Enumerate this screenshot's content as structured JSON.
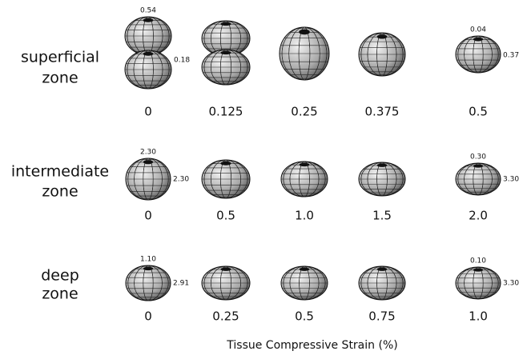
{
  "rows": [
    {
      "label_lines": [
        "superficial",
        "zone"
      ],
      "strains": [
        "0",
        "0.125",
        "0.25",
        "0.375",
        "0.5"
      ],
      "first_top": "0.54",
      "first_side": "0.18",
      "last_top": "0.04",
      "last_side": "0.37"
    },
    {
      "label_lines": [
        "intermediate",
        "zone"
      ],
      "strains": [
        "0",
        "0.5",
        "1.0",
        "1.5",
        "2.0"
      ],
      "first_top": "2.30",
      "first_side": "2.30",
      "last_top": "0.30",
      "last_side": "3.30"
    },
    {
      "label_lines": [
        "deep",
        "zone"
      ],
      "strains": [
        "0",
        "0.25",
        "0.5",
        "0.75",
        "1.0"
      ],
      "first_top": "1.10",
      "first_side": "2.91",
      "last_top": "0.10",
      "last_side": "3.30"
    }
  ],
  "x_label": "Tissue Compressive Strain (%)"
}
